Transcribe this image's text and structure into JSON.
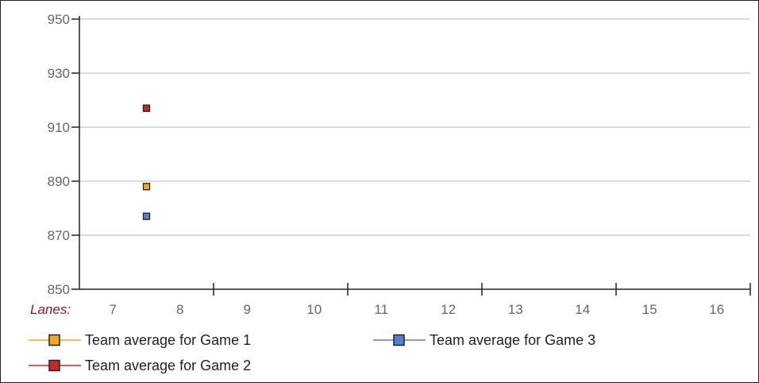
{
  "chart_data": {
    "type": "scatter",
    "x_label": "Lanes:",
    "categories": [
      "7",
      "8",
      "9",
      "10",
      "11",
      "12",
      "13",
      "14",
      "15",
      "16"
    ],
    "ylim": [
      850,
      950
    ],
    "yticks": [
      "850",
      "870",
      "890",
      "910",
      "930",
      "950"
    ],
    "grid": true,
    "legend_position": "bottom",
    "series": [
      {
        "name": "Team average for Game 1",
        "color": "#f5a623",
        "points": [
          {
            "x": "7.5",
            "y": 888
          }
        ]
      },
      {
        "name": "Team average for Game 2",
        "color": "#c62828",
        "points": [
          {
            "x": "7.5",
            "y": 917
          }
        ]
      },
      {
        "name": "Team average for Game 3",
        "color": "#5b7bd5",
        "points": [
          {
            "x": "7.5",
            "y": 877
          }
        ]
      }
    ]
  }
}
